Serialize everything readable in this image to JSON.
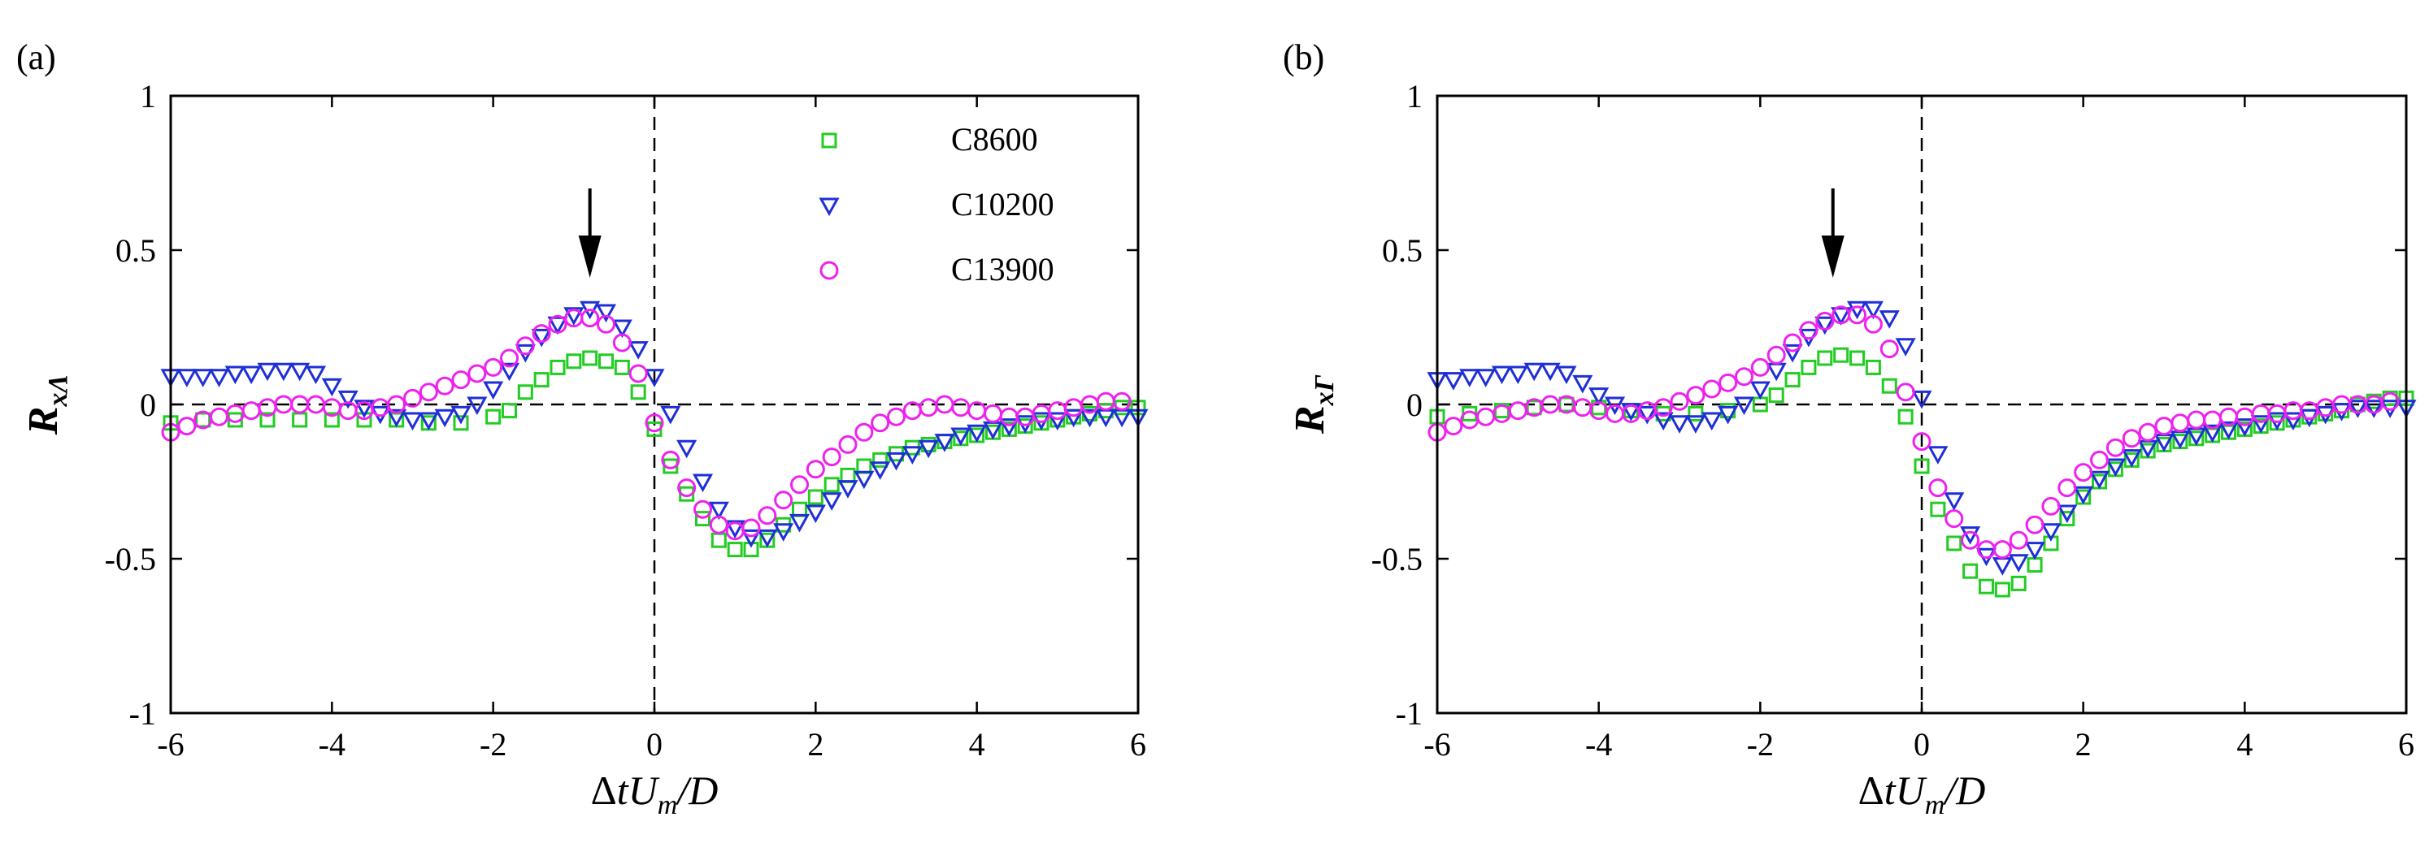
{
  "chart_data": [
    {
      "type": "scatter",
      "panel_label": "(a)",
      "xlabel": "ΔtU_m/D",
      "ylabel": "R_xΛ",
      "xlim": [
        -6,
        6
      ],
      "ylim": [
        -1,
        1
      ],
      "xticks": [
        -6,
        -4,
        -2,
        0,
        2,
        4,
        6
      ],
      "yticks": [
        -1,
        -0.5,
        0,
        0.5,
        1
      ],
      "xtick_labels": [
        "-6",
        "-4",
        "-2",
        "0",
        "2",
        "4",
        "6"
      ],
      "ytick_labels": [
        "-1",
        "-0.5",
        "0",
        "0.5",
        "1"
      ],
      "xlabel_parts": {
        "delta": "Δ",
        "t": "t",
        "U": "U",
        "m": "m",
        "rest": "/D"
      },
      "ylabel_parts": {
        "R": "R",
        "sub": "xΛ"
      },
      "arrow_x": -0.8,
      "reference_lines": {
        "x": 0,
        "y": 0,
        "style": "dashed"
      },
      "legend": {
        "position": "top-right",
        "entries": [
          "C8600",
          "C10200",
          "C13900"
        ]
      },
      "series": [
        {
          "name": "C8600",
          "marker": "square",
          "color": "#22cc22",
          "x": [
            -6.0,
            -5.6,
            -5.2,
            -4.8,
            -4.4,
            -4.0,
            -3.6,
            -3.2,
            -2.8,
            -2.4,
            -2.0,
            -1.8,
            -1.6,
            -1.4,
            -1.2,
            -1.0,
            -0.8,
            -0.6,
            -0.4,
            -0.2,
            0.0,
            0.2,
            0.4,
            0.6,
            0.8,
            1.0,
            1.2,
            1.4,
            1.6,
            1.8,
            2.0,
            2.2,
            2.4,
            2.6,
            2.8,
            3.0,
            3.2,
            3.4,
            3.6,
            3.8,
            4.0,
            4.2,
            4.4,
            4.6,
            4.8,
            5.0,
            5.2,
            5.4,
            5.6,
            5.8,
            6.0
          ],
          "y": [
            -0.06,
            -0.05,
            -0.05,
            -0.05,
            -0.05,
            -0.05,
            -0.05,
            -0.05,
            -0.06,
            -0.06,
            -0.04,
            -0.02,
            0.04,
            0.08,
            0.12,
            0.14,
            0.15,
            0.14,
            0.12,
            0.04,
            -0.08,
            -0.2,
            -0.29,
            -0.37,
            -0.44,
            -0.47,
            -0.47,
            -0.44,
            -0.39,
            -0.34,
            -0.3,
            -0.26,
            -0.23,
            -0.2,
            -0.18,
            -0.16,
            -0.14,
            -0.13,
            -0.12,
            -0.11,
            -0.1,
            -0.09,
            -0.08,
            -0.07,
            -0.06,
            -0.05,
            -0.04,
            -0.03,
            -0.02,
            -0.01,
            -0.01
          ]
        },
        {
          "name": "C10200",
          "marker": "triangle-down",
          "color": "#1f2fd6",
          "x": [
            -6.0,
            -5.8,
            -5.6,
            -5.4,
            -5.2,
            -5.0,
            -4.8,
            -4.6,
            -4.4,
            -4.2,
            -4.0,
            -3.8,
            -3.6,
            -3.4,
            -3.2,
            -3.0,
            -2.8,
            -2.6,
            -2.4,
            -2.2,
            -2.0,
            -1.8,
            -1.6,
            -1.4,
            -1.2,
            -1.0,
            -0.8,
            -0.6,
            -0.4,
            -0.2,
            0.0,
            0.2,
            0.4,
            0.6,
            0.8,
            1.0,
            1.2,
            1.4,
            1.6,
            1.8,
            2.0,
            2.2,
            2.4,
            2.6,
            2.8,
            3.0,
            3.2,
            3.4,
            3.6,
            3.8,
            4.0,
            4.2,
            4.4,
            4.6,
            4.8,
            5.0,
            5.2,
            5.4,
            5.6,
            5.8,
            6.0
          ],
          "y": [
            0.09,
            0.09,
            0.09,
            0.09,
            0.1,
            0.1,
            0.11,
            0.11,
            0.11,
            0.1,
            0.06,
            0.02,
            -0.01,
            -0.03,
            -0.04,
            -0.05,
            -0.05,
            -0.04,
            -0.03,
            0.0,
            0.05,
            0.11,
            0.17,
            0.22,
            0.26,
            0.29,
            0.31,
            0.3,
            0.25,
            0.18,
            0.09,
            -0.03,
            -0.14,
            -0.25,
            -0.34,
            -0.4,
            -0.43,
            -0.43,
            -0.41,
            -0.38,
            -0.35,
            -0.31,
            -0.27,
            -0.24,
            -0.21,
            -0.18,
            -0.16,
            -0.14,
            -0.12,
            -0.1,
            -0.09,
            -0.08,
            -0.07,
            -0.06,
            -0.05,
            -0.05,
            -0.04,
            -0.04,
            -0.04,
            -0.04,
            -0.04
          ]
        },
        {
          "name": "C13900",
          "marker": "circle",
          "color": "#ee22ee",
          "x": [
            -6.0,
            -5.8,
            -5.6,
            -5.4,
            -5.2,
            -5.0,
            -4.8,
            -4.6,
            -4.4,
            -4.2,
            -4.0,
            -3.8,
            -3.6,
            -3.4,
            -3.2,
            -3.0,
            -2.8,
            -2.6,
            -2.4,
            -2.2,
            -2.0,
            -1.8,
            -1.6,
            -1.4,
            -1.2,
            -1.0,
            -0.8,
            -0.6,
            -0.4,
            -0.2,
            0.0,
            0.2,
            0.4,
            0.6,
            0.8,
            1.0,
            1.2,
            1.4,
            1.6,
            1.8,
            2.0,
            2.2,
            2.4,
            2.6,
            2.8,
            3.0,
            3.2,
            3.4,
            3.6,
            3.8,
            4.0,
            4.2,
            4.4,
            4.6,
            4.8,
            5.0,
            5.2,
            5.4,
            5.6,
            5.8
          ],
          "y": [
            -0.09,
            -0.07,
            -0.05,
            -0.04,
            -0.03,
            -0.02,
            -0.01,
            0.0,
            0.0,
            0.0,
            -0.01,
            -0.02,
            -0.02,
            -0.01,
            0.0,
            0.02,
            0.04,
            0.06,
            0.08,
            0.1,
            0.12,
            0.15,
            0.19,
            0.23,
            0.26,
            0.28,
            0.28,
            0.26,
            0.2,
            0.1,
            -0.06,
            -0.18,
            -0.27,
            -0.34,
            -0.39,
            -0.41,
            -0.4,
            -0.36,
            -0.31,
            -0.26,
            -0.21,
            -0.17,
            -0.13,
            -0.09,
            -0.06,
            -0.04,
            -0.02,
            -0.01,
            0.0,
            -0.01,
            -0.02,
            -0.03,
            -0.04,
            -0.04,
            -0.03,
            -0.02,
            -0.01,
            0.0,
            0.01,
            0.01
          ]
        }
      ]
    },
    {
      "type": "scatter",
      "panel_label": "(b)",
      "xlabel": "ΔtU_m/D",
      "ylabel": "R_xΓ",
      "xlim": [
        -6,
        6
      ],
      "ylim": [
        -1,
        1
      ],
      "xticks": [
        -6,
        -4,
        -2,
        0,
        2,
        4,
        6
      ],
      "yticks": [
        -1,
        -0.5,
        0,
        0.5,
        1
      ],
      "xtick_labels": [
        "-6",
        "-4",
        "-2",
        "0",
        "2",
        "4",
        "6"
      ],
      "ytick_labels": [
        "-1",
        "-0.5",
        "0",
        "0.5",
        "1"
      ],
      "xlabel_parts": {
        "delta": "Δ",
        "t": "t",
        "U": "U",
        "m": "m",
        "rest": "/D"
      },
      "ylabel_parts": {
        "R": "R",
        "sub": "xΓ"
      },
      "arrow_x": -1.1,
      "reference_lines": {
        "x": 0,
        "y": 0,
        "style": "dashed"
      },
      "legend": null,
      "series": [
        {
          "name": "C8600",
          "marker": "square",
          "color": "#22cc22",
          "x": [
            -6.0,
            -5.6,
            -5.2,
            -4.8,
            -4.4,
            -4.0,
            -3.6,
            -3.2,
            -2.8,
            -2.4,
            -2.0,
            -1.8,
            -1.6,
            -1.4,
            -1.2,
            -1.0,
            -0.8,
            -0.6,
            -0.4,
            -0.2,
            0.0,
            0.2,
            0.4,
            0.6,
            0.8,
            1.0,
            1.2,
            1.4,
            1.6,
            1.8,
            2.0,
            2.2,
            2.4,
            2.6,
            2.8,
            3.0,
            3.2,
            3.4,
            3.6,
            3.8,
            4.0,
            4.2,
            4.4,
            4.6,
            4.8,
            5.0,
            5.2,
            5.4,
            5.6,
            5.8,
            6.0
          ],
          "y": [
            -0.04,
            -0.03,
            -0.02,
            -0.01,
            0.0,
            -0.01,
            -0.02,
            -0.03,
            -0.03,
            -0.02,
            0.0,
            0.03,
            0.08,
            0.12,
            0.15,
            0.16,
            0.15,
            0.12,
            0.06,
            -0.04,
            -0.2,
            -0.34,
            -0.45,
            -0.54,
            -0.59,
            -0.6,
            -0.58,
            -0.52,
            -0.45,
            -0.37,
            -0.3,
            -0.25,
            -0.21,
            -0.18,
            -0.15,
            -0.13,
            -0.12,
            -0.11,
            -0.1,
            -0.09,
            -0.08,
            -0.07,
            -0.06,
            -0.05,
            -0.04,
            -0.03,
            -0.02,
            0.0,
            0.01,
            0.02,
            0.02
          ]
        },
        {
          "name": "C10200",
          "marker": "triangle-down",
          "color": "#1f2fd6",
          "x": [
            -6.0,
            -5.8,
            -5.6,
            -5.4,
            -5.2,
            -5.0,
            -4.8,
            -4.6,
            -4.4,
            -4.2,
            -4.0,
            -3.8,
            -3.6,
            -3.4,
            -3.2,
            -3.0,
            -2.8,
            -2.6,
            -2.4,
            -2.2,
            -2.0,
            -1.8,
            -1.6,
            -1.4,
            -1.2,
            -1.0,
            -0.8,
            -0.6,
            -0.4,
            -0.2,
            0.0,
            0.2,
            0.4,
            0.6,
            0.8,
            1.0,
            1.2,
            1.4,
            1.6,
            1.8,
            2.0,
            2.2,
            2.4,
            2.6,
            2.8,
            3.0,
            3.2,
            3.4,
            3.6,
            3.8,
            4.0,
            4.2,
            4.4,
            4.6,
            4.8,
            5.0,
            5.2,
            5.4,
            5.6,
            5.8,
            6.0
          ],
          "y": [
            0.08,
            0.08,
            0.09,
            0.09,
            0.1,
            0.1,
            0.11,
            0.11,
            0.1,
            0.07,
            0.03,
            0.0,
            -0.02,
            -0.03,
            -0.05,
            -0.06,
            -0.06,
            -0.05,
            -0.03,
            0.0,
            0.05,
            0.11,
            0.17,
            0.22,
            0.26,
            0.29,
            0.31,
            0.31,
            0.28,
            0.19,
            0.02,
            -0.16,
            -0.31,
            -0.42,
            -0.49,
            -0.52,
            -0.51,
            -0.47,
            -0.41,
            -0.35,
            -0.29,
            -0.24,
            -0.2,
            -0.17,
            -0.14,
            -0.12,
            -0.11,
            -0.1,
            -0.09,
            -0.08,
            -0.07,
            -0.06,
            -0.05,
            -0.05,
            -0.04,
            -0.03,
            -0.02,
            -0.01,
            -0.01,
            -0.01,
            -0.01
          ]
        },
        {
          "name": "C13900",
          "marker": "circle",
          "color": "#ee22ee",
          "x": [
            -6.0,
            -5.8,
            -5.6,
            -5.4,
            -5.2,
            -5.0,
            -4.8,
            -4.6,
            -4.4,
            -4.2,
            -4.0,
            -3.8,
            -3.6,
            -3.4,
            -3.2,
            -3.0,
            -2.8,
            -2.6,
            -2.4,
            -2.2,
            -2.0,
            -1.8,
            -1.6,
            -1.4,
            -1.2,
            -1.0,
            -0.8,
            -0.6,
            -0.4,
            -0.2,
            0.0,
            0.2,
            0.4,
            0.6,
            0.8,
            1.0,
            1.2,
            1.4,
            1.6,
            1.8,
            2.0,
            2.2,
            2.4,
            2.6,
            2.8,
            3.0,
            3.2,
            3.4,
            3.6,
            3.8,
            4.0,
            4.2,
            4.4,
            4.6,
            4.8,
            5.0,
            5.2,
            5.4,
            5.6,
            5.8
          ],
          "y": [
            -0.09,
            -0.07,
            -0.05,
            -0.04,
            -0.03,
            -0.02,
            -0.01,
            0.0,
            0.0,
            -0.01,
            -0.02,
            -0.03,
            -0.03,
            -0.02,
            -0.01,
            0.01,
            0.03,
            0.05,
            0.07,
            0.09,
            0.12,
            0.16,
            0.2,
            0.24,
            0.27,
            0.29,
            0.29,
            0.26,
            0.18,
            0.04,
            -0.12,
            -0.27,
            -0.37,
            -0.44,
            -0.47,
            -0.47,
            -0.44,
            -0.39,
            -0.33,
            -0.27,
            -0.22,
            -0.18,
            -0.14,
            -0.11,
            -0.09,
            -0.07,
            -0.06,
            -0.05,
            -0.05,
            -0.04,
            -0.04,
            -0.03,
            -0.03,
            -0.02,
            -0.02,
            -0.01,
            0.0,
            0.0,
            0.0,
            0.01
          ]
        }
      ]
    }
  ]
}
